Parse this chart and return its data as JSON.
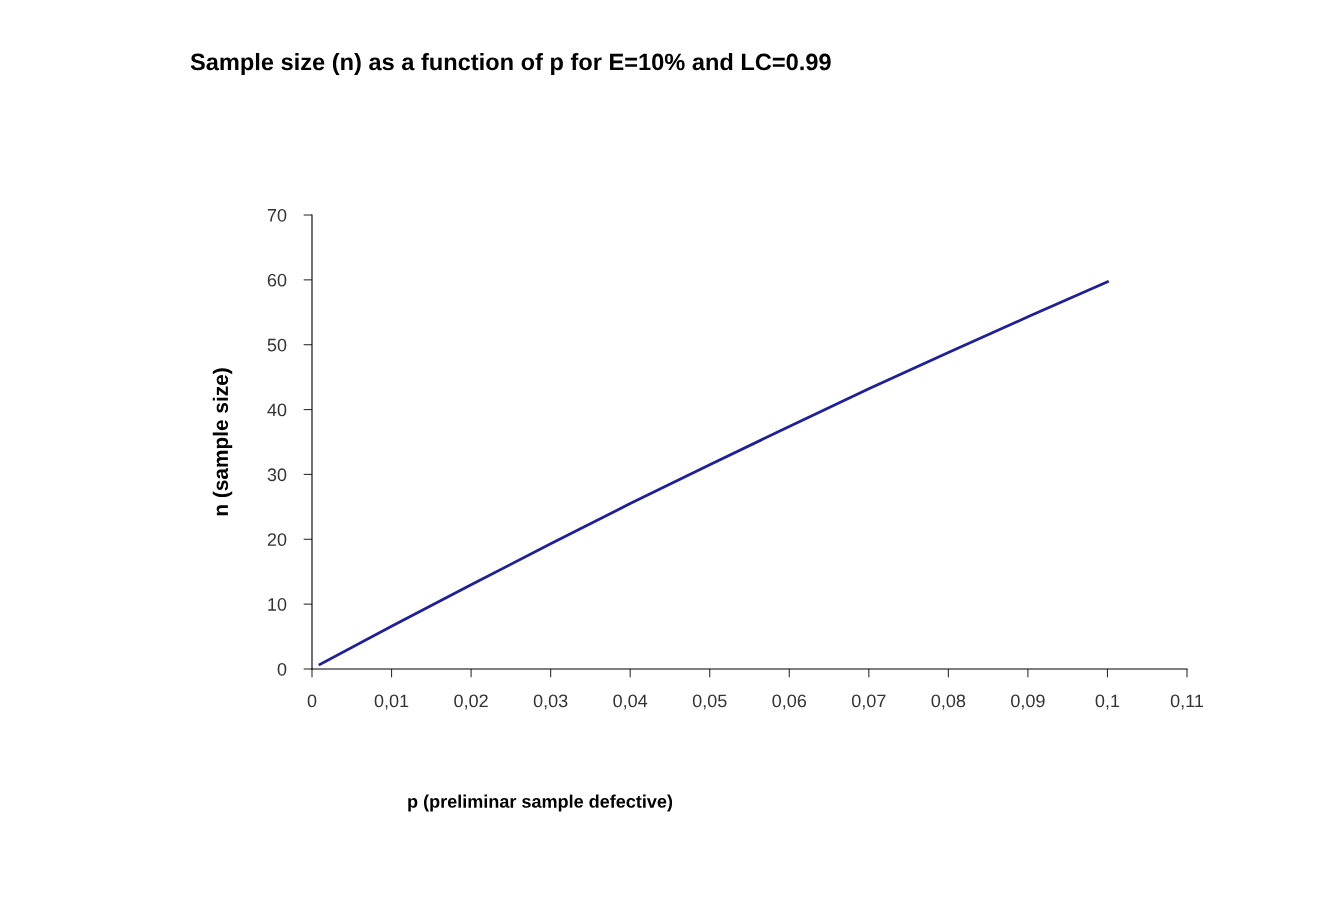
{
  "chart_data": {
    "type": "line",
    "title": "Sample size (n) as a function of p for E=10% and LC=0.99",
    "xlabel": "p (preliminar sample defective)",
    "ylabel": "n (sample size)",
    "x": [
      0.001,
      0.01,
      0.02,
      0.03,
      0.04,
      0.05,
      0.06,
      0.07,
      0.08,
      0.09,
      0.1
    ],
    "series": [
      {
        "color": "#1f1f9c",
        "values": [
          0.7,
          6.6,
          13.0,
          19.3,
          25.5,
          31.5,
          37.4,
          43.2,
          48.8,
          54.3,
          59.7
        ]
      }
    ],
    "xlim": [
      0,
      0.11
    ],
    "ylim": [
      0,
      70
    ],
    "xticks": [
      0,
      {
        "value": 0.01,
        "label": "0,01"
      },
      {
        "value": 0.02,
        "label": "0,02"
      },
      {
        "value": 0.03,
        "label": "0,03"
      },
      {
        "value": 0.04,
        "label": "0,04"
      },
      {
        "value": 0.05,
        "label": "0,05"
      },
      {
        "value": 0.06,
        "label": "0,06"
      },
      {
        "value": 0.07,
        "label": "0,07"
      },
      {
        "value": 0.08,
        "label": "0,08"
      },
      {
        "value": 0.09,
        "label": "0,09"
      },
      {
        "value": 0.1,
        "label": "0,1"
      },
      {
        "value": 0.11,
        "label": "0,11"
      }
    ],
    "yticks": [
      0,
      10,
      20,
      30,
      40,
      50,
      60,
      70
    ],
    "grid": false,
    "legend": false,
    "marker": "none",
    "line_style": "solid"
  }
}
